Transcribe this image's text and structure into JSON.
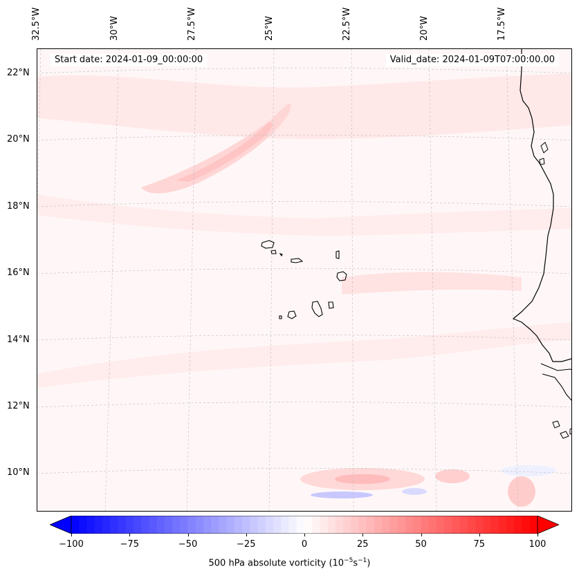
{
  "header": {
    "start_date": "Start date: 2024-01-09_00:00:00",
    "valid_date": "Valid_date: 2024-01-09T07:00:00.00"
  },
  "map": {
    "variable": "500 hPa absolute vorticity",
    "lon_labels": [
      "32.5°W",
      "30°W",
      "27.5°W",
      "25°W",
      "22.5°W",
      "20°W",
      "17.5°W"
    ],
    "lat_labels": [
      "22°N",
      "20°N",
      "18°N",
      "16°N",
      "14°N",
      "12°N",
      "10°N"
    ],
    "features": [
      "Cape Verde islands",
      "West African coastline",
      "Senegal",
      "Mauritania",
      "Guinea-Bissau",
      "Gambia"
    ],
    "colormap": "bwr",
    "colors": {
      "negative": "#0000ff",
      "zero": "#ffffff",
      "positive": "#ff0000",
      "coastline": "#000000",
      "grid": "#bbbbbb"
    }
  },
  "colorbar": {
    "ticks": [
      "−100",
      "−75",
      "−50",
      "−25",
      "0",
      "25",
      "50",
      "75",
      "100"
    ],
    "min": -100,
    "max": 100,
    "levels": 60,
    "extend": "both",
    "label_text": "500 hPa absolute vorticity (10",
    "label_exp1": "−5",
    "label_mid": "s",
    "label_exp2": "−1",
    "label_end": ")"
  }
}
